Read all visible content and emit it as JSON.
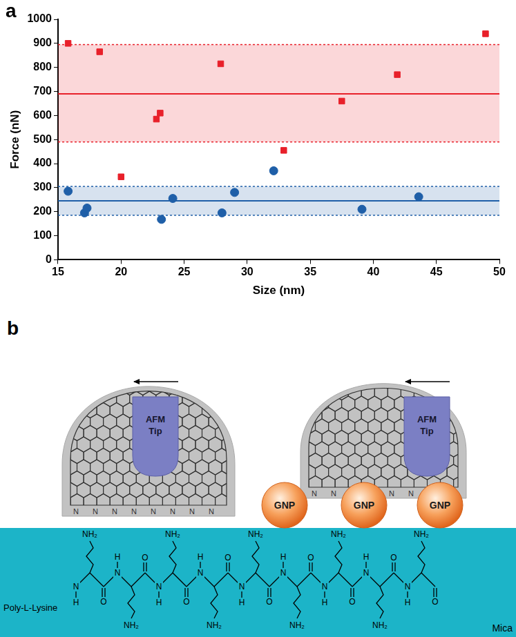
{
  "chart_data": {
    "type": "scatter",
    "panel_label": "a",
    "x_label": "Size (nm)",
    "y_label": "Force (nN)",
    "xlim": [
      15,
      50
    ],
    "xticks": [
      15,
      20,
      25,
      30,
      35,
      40,
      45,
      50
    ],
    "ylim": [
      0,
      1000
    ],
    "yticks": [
      0,
      100,
      200,
      300,
      400,
      500,
      600,
      700,
      800,
      900,
      1000
    ],
    "grid": false,
    "series": [
      {
        "color": "#e8202a",
        "marker": "square",
        "x": [
          15.8,
          18.3,
          20.0,
          22.8,
          23.1,
          27.9,
          32.9,
          37.5,
          41.9,
          48.9
        ],
        "values": [
          900,
          865,
          345,
          585,
          610,
          815,
          455,
          660,
          770,
          940
        ],
        "mean": 690,
        "band": [
          490,
          895
        ]
      },
      {
        "color": "#1f5fa8",
        "marker": "circle",
        "x": [
          15.8,
          17.1,
          17.3,
          23.2,
          24.1,
          28.0,
          29.0,
          32.1,
          39.1,
          43.6
        ],
        "values": [
          285,
          195,
          215,
          168,
          255,
          195,
          280,
          370,
          210,
          262
        ],
        "mean": 245,
        "band": [
          185,
          305
        ]
      }
    ]
  },
  "diagram": {
    "panel_label": "b",
    "afm_tip_label": "AFM Tip",
    "nanoparticle_label": "GNP",
    "edge_atom": "N",
    "polymer_label": "Poly-L-Lysine",
    "substrate_label": "Mica",
    "amine_label": "NH₂",
    "backbone_atoms": {
      "nitrogen": "N",
      "hydrogen": "H",
      "oxygen": "O"
    }
  }
}
